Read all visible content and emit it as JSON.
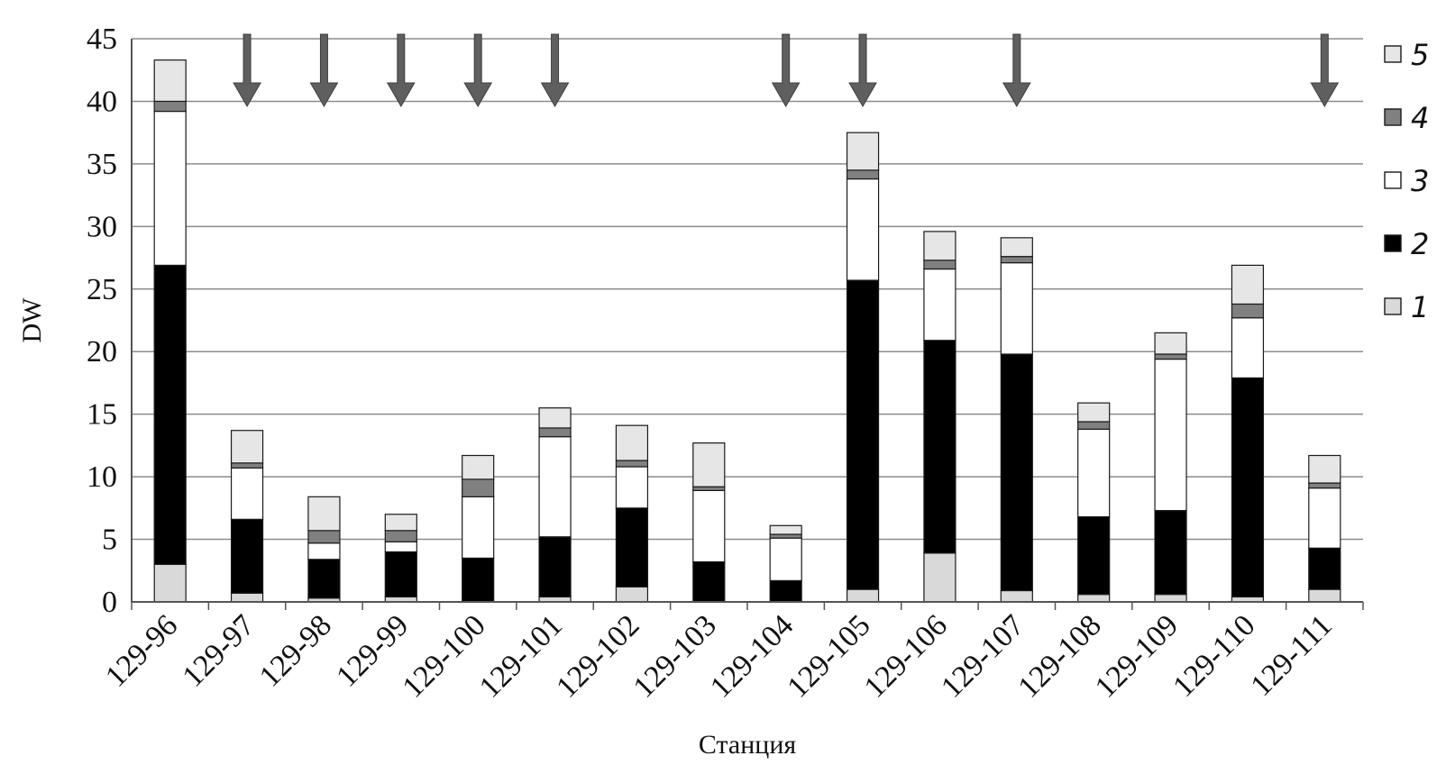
{
  "chart_data": {
    "type": "bar",
    "stacked": true,
    "title": "",
    "xlabel": "Станция",
    "ylabel": "DW",
    "ylim": [
      0,
      45
    ],
    "yticks": [
      0,
      5,
      10,
      15,
      20,
      25,
      30,
      35,
      40,
      45
    ],
    "grid": true,
    "legend_position": "right",
    "categories": [
      "129-96",
      "129-97",
      "129-98",
      "129-99",
      "129-100",
      "129-101",
      "129-102",
      "129-103",
      "129-104",
      "129-105",
      "129-106",
      "129-107",
      "129-108",
      "129-109",
      "129-110",
      "129-111"
    ],
    "series": [
      {
        "name": "1",
        "color": "#d9d9d9",
        "values": [
          3.0,
          0.7,
          0.3,
          0.4,
          0.0,
          0.4,
          1.2,
          0.0,
          0.0,
          1.0,
          3.9,
          0.9,
          0.6,
          0.6,
          0.4,
          1.0
        ]
      },
      {
        "name": "2",
        "color": "#000000",
        "values": [
          23.9,
          5.9,
          3.1,
          3.6,
          3.5,
          4.8,
          6.3,
          3.2,
          1.7,
          24.7,
          17.0,
          18.9,
          6.2,
          6.7,
          17.5,
          3.3
        ]
      },
      {
        "name": "3",
        "color": "#ffffff",
        "values": [
          12.3,
          4.1,
          1.3,
          0.8,
          4.9,
          8.0,
          3.3,
          5.7,
          3.4,
          8.1,
          5.7,
          7.3,
          7.0,
          12.1,
          4.8,
          4.8
        ]
      },
      {
        "name": "4",
        "color": "#808080",
        "values": [
          0.8,
          0.4,
          1.0,
          0.9,
          1.4,
          0.7,
          0.5,
          0.3,
          0.3,
          0.7,
          0.7,
          0.5,
          0.6,
          0.4,
          1.1,
          0.4
        ]
      },
      {
        "name": "5",
        "color": "#e6e6e6",
        "values": [
          3.3,
          2.6,
          2.7,
          1.3,
          1.9,
          1.6,
          2.8,
          3.5,
          0.7,
          3.0,
          2.3,
          1.5,
          1.5,
          1.7,
          3.1,
          2.2
        ]
      }
    ],
    "arrow_marked_categories": [
      "129-97",
      "129-98",
      "129-99",
      "129-100",
      "129-101",
      "129-104",
      "129-105",
      "129-107",
      "129-111"
    ]
  }
}
